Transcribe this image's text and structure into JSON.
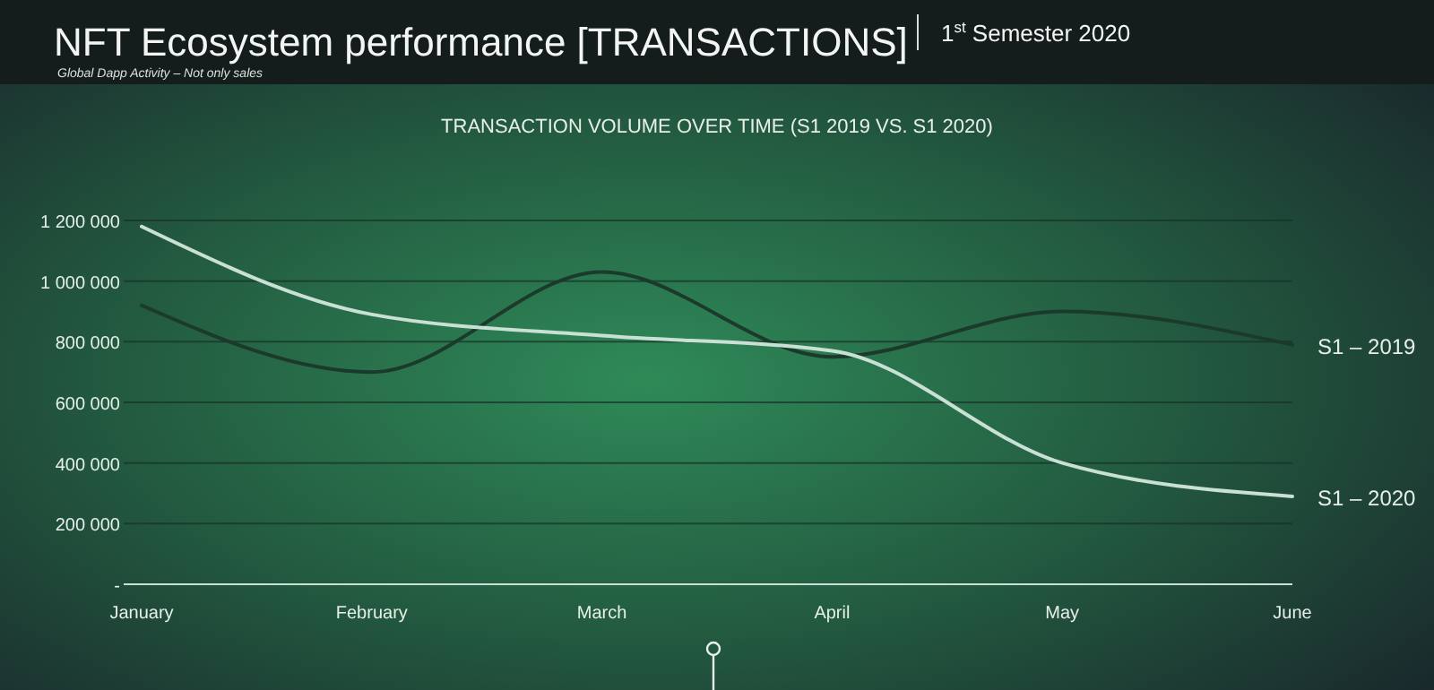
{
  "chart_data": {
    "type": "line",
    "title": "NFT Ecosystem performance [TRANSACTIONS]",
    "subtitle": "Global Dapp Activity – Not only sales",
    "annotations": [
      "1$^{st}$ Semester 2020",
      "TRANSACTION VOLUME OVER TIME (S1 2019 VS. S1 2020)"
    ],
    "categories": [
      "January",
      "February",
      "March",
      "April",
      "May",
      "June"
    ],
    "series": [
      {
        "name": "S1 – 2019",
        "color": "#1c3a2c",
        "values": [
          920000,
          700000,
          1030000,
          750000,
          900000,
          790000
        ]
      },
      {
        "name": "S1 – 2020",
        "color": "#c9e0d4",
        "values": [
          1180000,
          890000,
          820000,
          770000,
          400000,
          290000
        ]
      }
    ],
    "ylim": [
      0,
      1200000
    ],
    "yticks": [
      {
        "value": 0,
        "label": "-"
      },
      {
        "value": 200000,
        "label": "200 000"
      },
      {
        "value": 400000,
        "label": "400 000"
      },
      {
        "value": 600000,
        "label": "600 000"
      },
      {
        "value": 800000,
        "label": "800 000"
      },
      {
        "value": 1000000,
        "label": "1 000 000"
      },
      {
        "value": 1200000,
        "label": "1 200 000"
      }
    ],
    "grid": "y",
    "legend": "right",
    "marker": "none",
    "line_style": "solid"
  }
}
